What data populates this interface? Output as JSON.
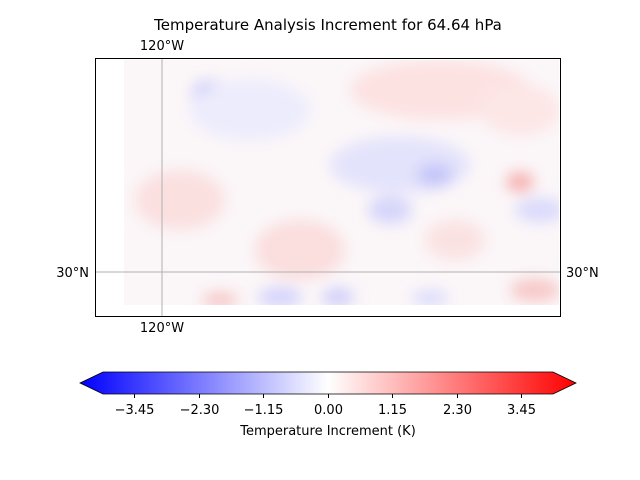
{
  "title": "Temperature Analysis Increment for  64.64 hPa",
  "map": {
    "lon_labels_top": [
      "120°W"
    ],
    "lon_labels_bottom": [
      "120°W"
    ],
    "lat_labels_left": [
      "30°N"
    ],
    "lat_labels_right": [
      "30°N"
    ]
  },
  "colorbar": {
    "label": "Temperature Increment (K)",
    "ticks": [
      "−3.45",
      "−2.30",
      "−1.15",
      "0.00",
      "1.15",
      "2.30",
      "3.45"
    ],
    "range": [
      -4.0,
      4.0
    ],
    "colormap": "bwr",
    "color_low": "#0000ff",
    "color_mid": "#ffffff",
    "color_high": "#ff0000",
    "extend": "both"
  }
}
